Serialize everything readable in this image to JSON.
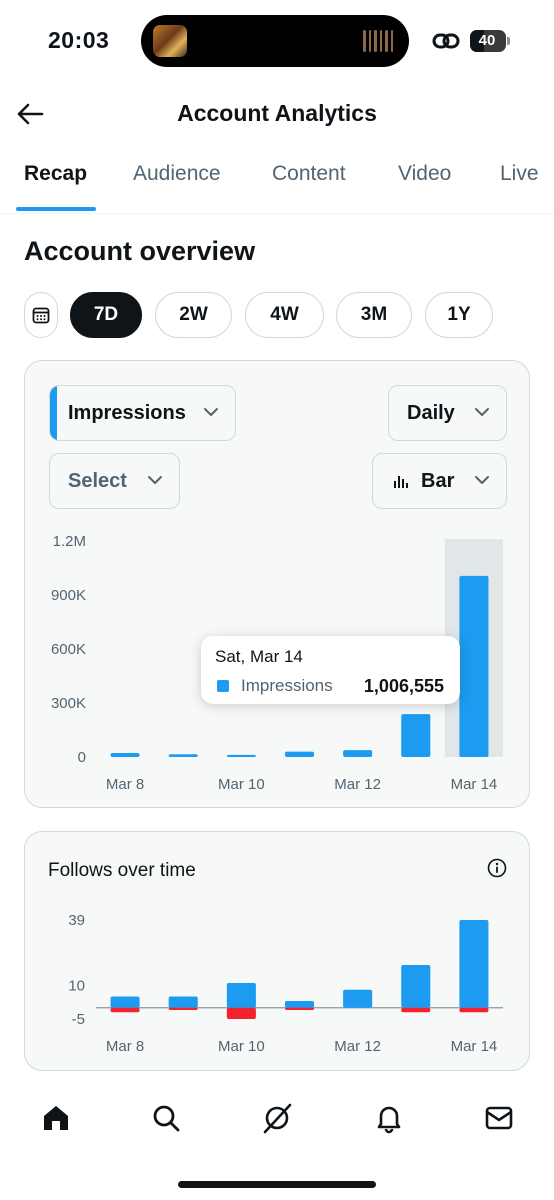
{
  "status_bar": {
    "time": "20:03",
    "battery": "40",
    "battery_level": 0.4
  },
  "header": {
    "title": "Account Analytics",
    "back_icon": "arrow-left-icon"
  },
  "tabs": [
    {
      "label": "Recap",
      "active": true
    },
    {
      "label": "Audience",
      "active": false
    },
    {
      "label": "Content",
      "active": false
    },
    {
      "label": "Video",
      "active": false
    },
    {
      "label": "Live",
      "active": false
    }
  ],
  "overview": {
    "title": "Account overview",
    "ranges": [
      {
        "label": "7D",
        "active": true
      },
      {
        "label": "2W",
        "active": false
      },
      {
        "label": "4W",
        "active": false
      },
      {
        "label": "3M",
        "active": false
      },
      {
        "label": "1Y",
        "active": false
      }
    ],
    "calendar_icon": "calendar-icon"
  },
  "impressions_card": {
    "metric_label": "Impressions",
    "frequency_label": "Daily",
    "compare_placeholder": "Select",
    "chart_type_label": "Bar",
    "tooltip": {
      "date": "Sat, Mar 14",
      "series": "Impressions",
      "value": "1,006,555"
    }
  },
  "follows_card": {
    "title": "Follows over time"
  },
  "bottom_nav": [
    "home-icon",
    "search-icon",
    "grok-icon",
    "bell-icon",
    "mail-icon"
  ],
  "colors": {
    "accent": "#1d9bf0",
    "negative": "#f4212e",
    "text": "#0f1419",
    "muted": "#536471",
    "border": "#cfd9de",
    "card_bg": "#f7f9f9"
  },
  "chart_data": [
    {
      "type": "bar",
      "title": "",
      "categories": [
        "Mar 8",
        "Mar 9",
        "Mar 10",
        "Mar 11",
        "Mar 12",
        "Mar 13",
        "Mar 14"
      ],
      "x_tick_labels": [
        "Mar 8",
        "Mar 10",
        "Mar 12",
        "Mar 14"
      ],
      "y_tick_labels": [
        "1.2M",
        "900K",
        "600K",
        "300K",
        "0"
      ],
      "ylim": [
        0,
        1200000
      ],
      "series": [
        {
          "name": "Impressions",
          "values": [
            22000,
            15000,
            12000,
            30000,
            38000,
            238000,
            1006555
          ]
        }
      ],
      "highlighted_category": "Mar 14",
      "grid": false
    },
    {
      "type": "bar",
      "title": "Follows over time",
      "categories": [
        "Mar 8",
        "Mar 9",
        "Mar 10",
        "Mar 11",
        "Mar 12",
        "Mar 13",
        "Mar 14"
      ],
      "x_tick_labels": [
        "Mar 8",
        "Mar 10",
        "Mar 12",
        "Mar 14"
      ],
      "y_tick_labels": [
        "39",
        "10",
        "-5"
      ],
      "ylim": [
        -5,
        39
      ],
      "series": [
        {
          "values": [
            5,
            5,
            11,
            3,
            8,
            19,
            39
          ]
        },
        {
          "values": [
            -2,
            -1,
            -5,
            -1,
            0,
            -2,
            -2
          ]
        }
      ],
      "grid": false
    }
  ]
}
